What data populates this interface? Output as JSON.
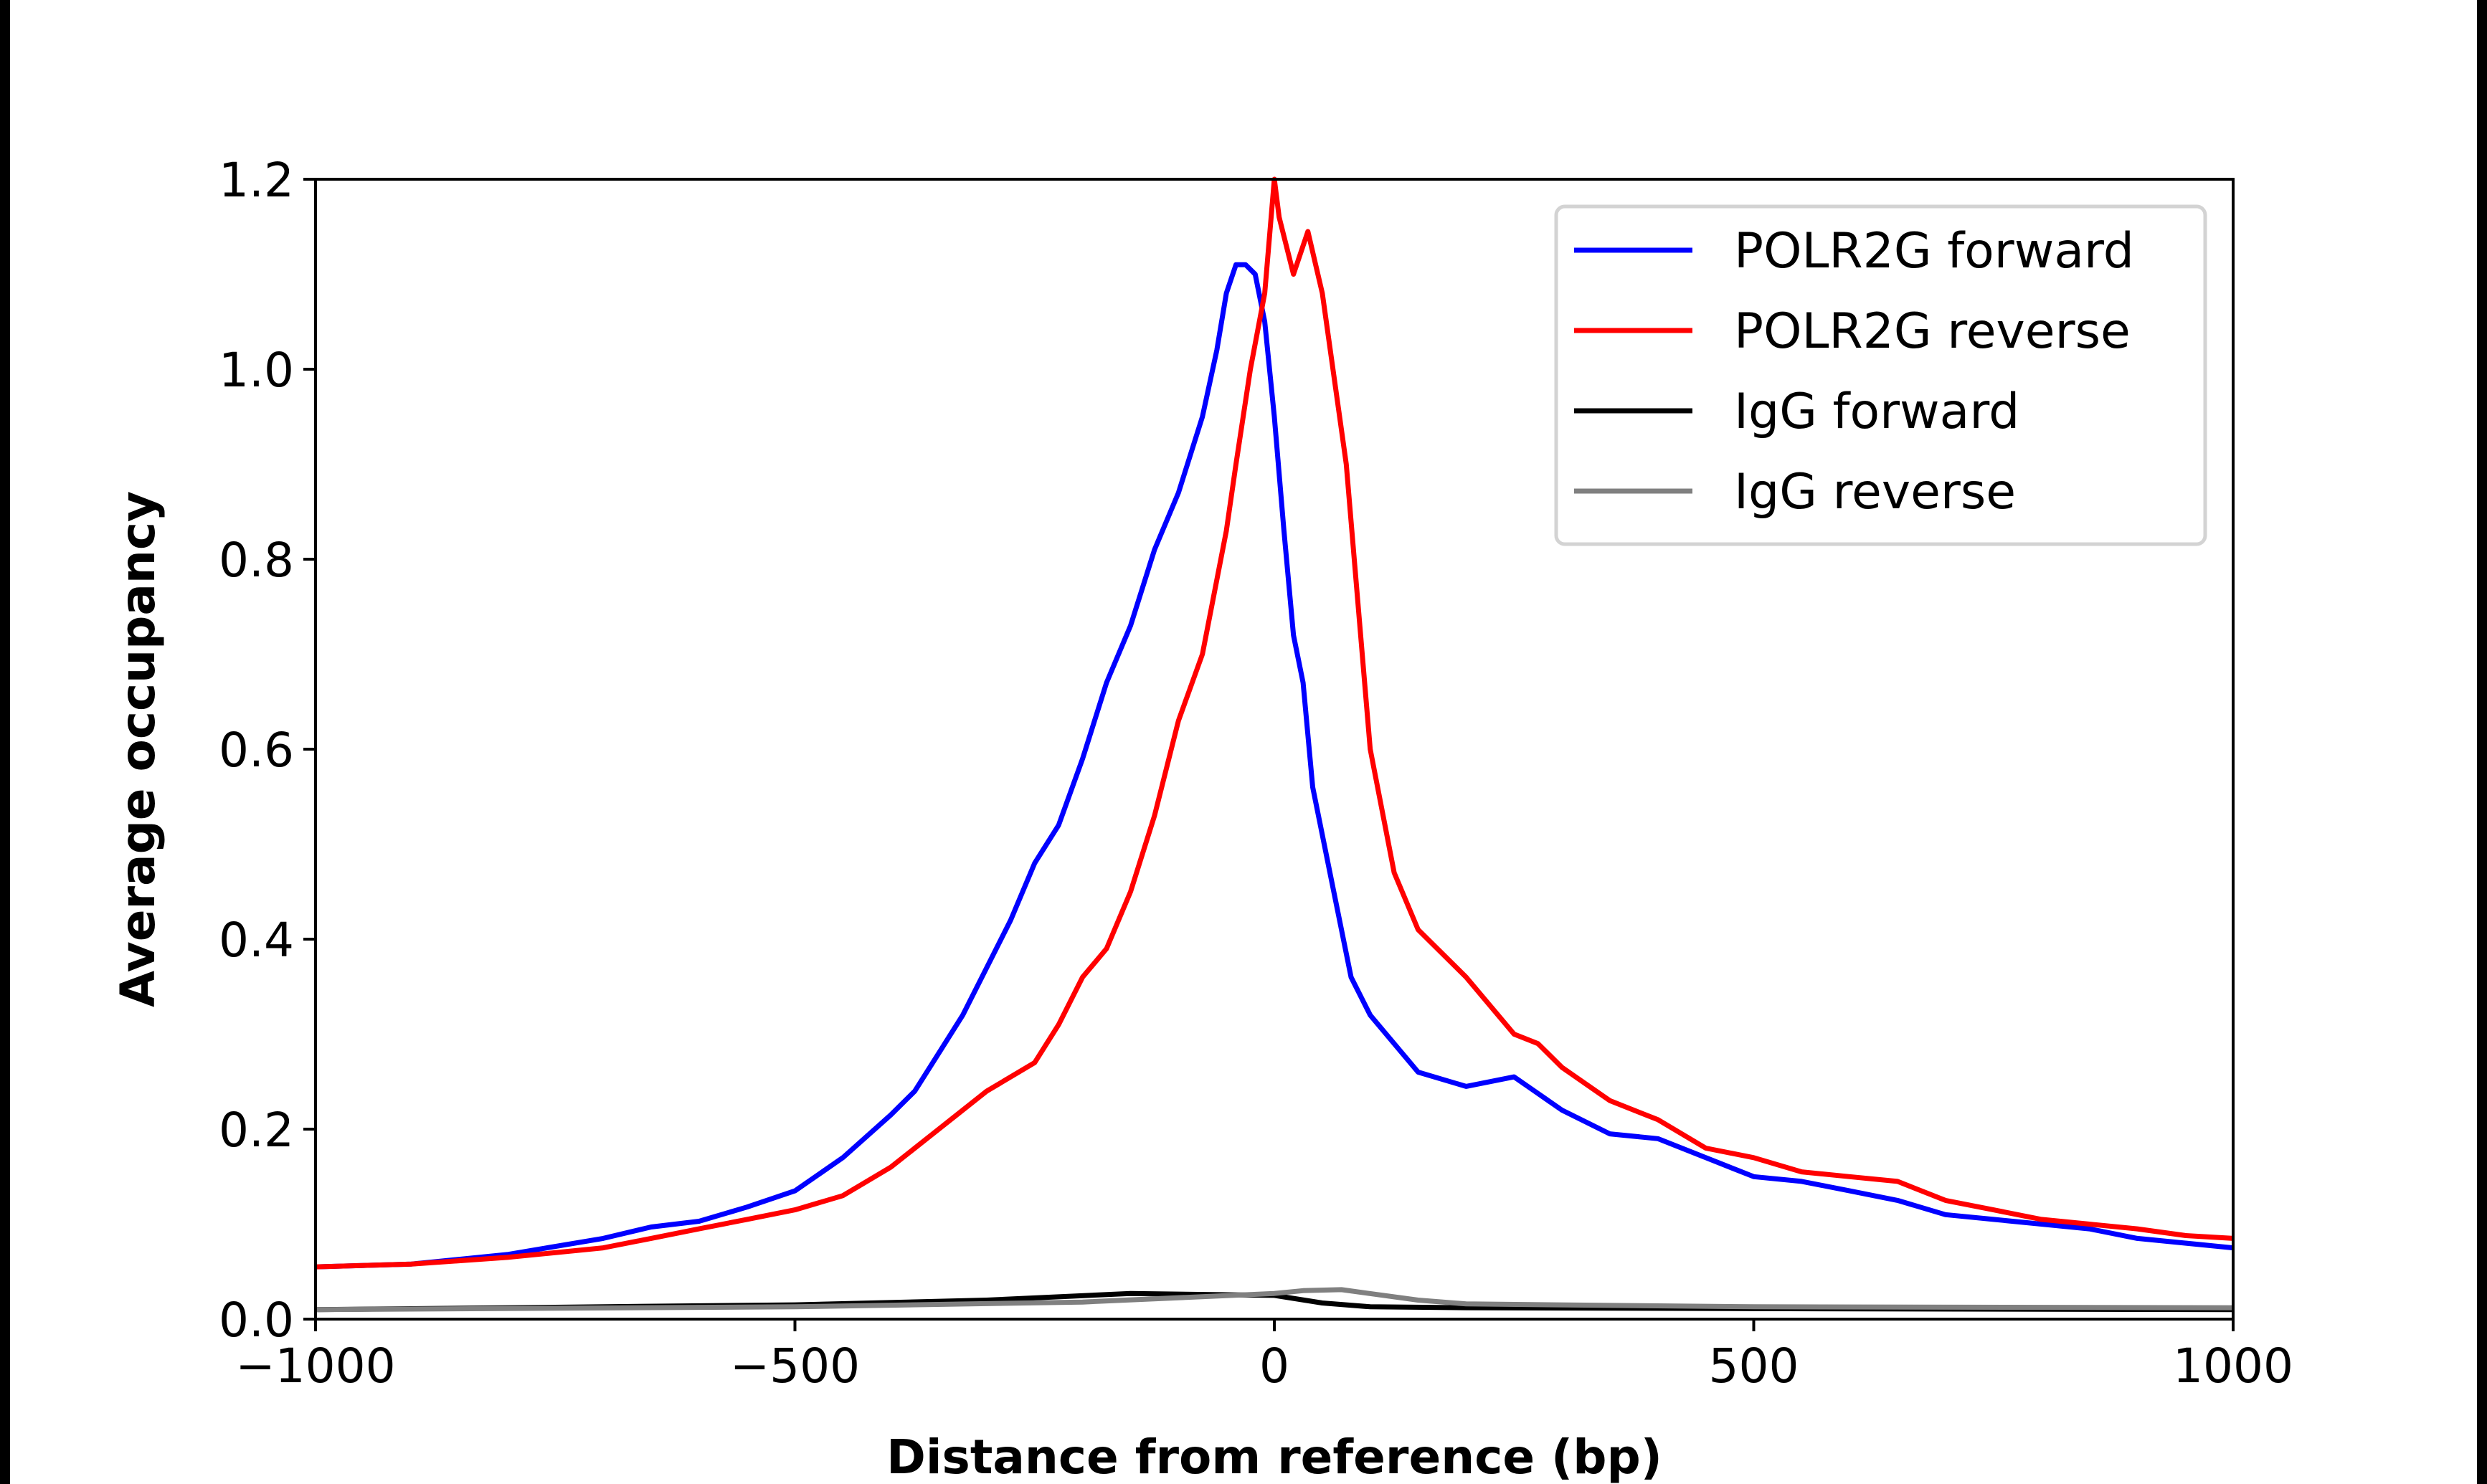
{
  "chart_data": {
    "type": "line",
    "title": "",
    "xlabel": "Distance from reference (bp)",
    "ylabel": "Average occupancy",
    "xlim": [
      -1000,
      1000
    ],
    "ylim": [
      0,
      1.2
    ],
    "xticks": [
      -1000,
      -500,
      0,
      500,
      1000
    ],
    "xtick_labels": [
      "−1000",
      "−500",
      "0",
      "500",
      "1000"
    ],
    "yticks": [
      0.0,
      0.2,
      0.4,
      0.6,
      0.8,
      1.0,
      1.2
    ],
    "ytick_labels": [
      "0.0",
      "0.2",
      "0.4",
      "0.6",
      "0.8",
      "1.0",
      "1.2"
    ],
    "grid": false,
    "legend_position": "top-right",
    "series": [
      {
        "name": "POLR2G forward",
        "color": "#0000ff",
        "x": [
          -1000,
          -900,
          -800,
          -700,
          -650,
          -600,
          -550,
          -500,
          -450,
          -400,
          -375,
          -350,
          -325,
          -300,
          -275,
          -250,
          -225,
          -200,
          -175,
          -150,
          -125,
          -100,
          -75,
          -60,
          -50,
          -40,
          -30,
          -20,
          -10,
          0,
          10,
          20,
          30,
          40,
          60,
          80,
          100,
          125,
          150,
          200,
          250,
          300,
          350,
          400,
          450,
          500,
          550,
          600,
          650,
          700,
          750,
          800,
          850,
          900,
          950,
          1000
        ],
        "y": [
          0.055,
          0.058,
          0.068,
          0.085,
          0.097,
          0.103,
          0.118,
          0.135,
          0.17,
          0.215,
          0.24,
          0.28,
          0.32,
          0.37,
          0.42,
          0.48,
          0.52,
          0.59,
          0.67,
          0.73,
          0.81,
          0.87,
          0.95,
          1.02,
          1.08,
          1.11,
          1.11,
          1.1,
          1.05,
          0.95,
          0.83,
          0.72,
          0.67,
          0.56,
          0.46,
          0.36,
          0.32,
          0.29,
          0.26,
          0.245,
          0.255,
          0.22,
          0.195,
          0.19,
          0.17,
          0.15,
          0.145,
          0.135,
          0.125,
          0.11,
          0.105,
          0.1,
          0.095,
          0.085,
          0.08,
          0.075
        ]
      },
      {
        "name": "POLR2G reverse",
        "color": "#ff0000",
        "x": [
          -1000,
          -900,
          -800,
          -700,
          -650,
          -600,
          -550,
          -500,
          -450,
          -400,
          -350,
          -300,
          -250,
          -225,
          -200,
          -175,
          -150,
          -125,
          -100,
          -75,
          -50,
          -40,
          -25,
          -10,
          0,
          5,
          20,
          35,
          50,
          75,
          100,
          125,
          150,
          200,
          250,
          275,
          300,
          350,
          400,
          450,
          500,
          550,
          600,
          650,
          700,
          750,
          800,
          850,
          900,
          950,
          1000
        ],
        "y": [
          0.055,
          0.058,
          0.065,
          0.075,
          0.085,
          0.095,
          0.105,
          0.115,
          0.13,
          0.16,
          0.2,
          0.24,
          0.27,
          0.31,
          0.36,
          0.39,
          0.45,
          0.53,
          0.63,
          0.7,
          0.83,
          0.9,
          1.0,
          1.08,
          1.2,
          1.16,
          1.1,
          1.145,
          1.08,
          0.9,
          0.6,
          0.47,
          0.41,
          0.36,
          0.3,
          0.29,
          0.265,
          0.23,
          0.21,
          0.18,
          0.17,
          0.155,
          0.15,
          0.145,
          0.125,
          0.115,
          0.105,
          0.1,
          0.095,
          0.088,
          0.085
        ]
      },
      {
        "name": "IgG forward",
        "color": "#000000",
        "x": [
          -1000,
          -500,
          -300,
          -150,
          0,
          50,
          100,
          200,
          500,
          1000
        ],
        "y": [
          0.01,
          0.015,
          0.02,
          0.027,
          0.025,
          0.017,
          0.013,
          0.012,
          0.011,
          0.01
        ]
      },
      {
        "name": "IgG reverse",
        "color": "#808080",
        "x": [
          -1000,
          -500,
          -200,
          0,
          30,
          70,
          150,
          200,
          500,
          1000
        ],
        "y": [
          0.01,
          0.013,
          0.018,
          0.027,
          0.03,
          0.031,
          0.02,
          0.016,
          0.013,
          0.012
        ]
      }
    ]
  }
}
